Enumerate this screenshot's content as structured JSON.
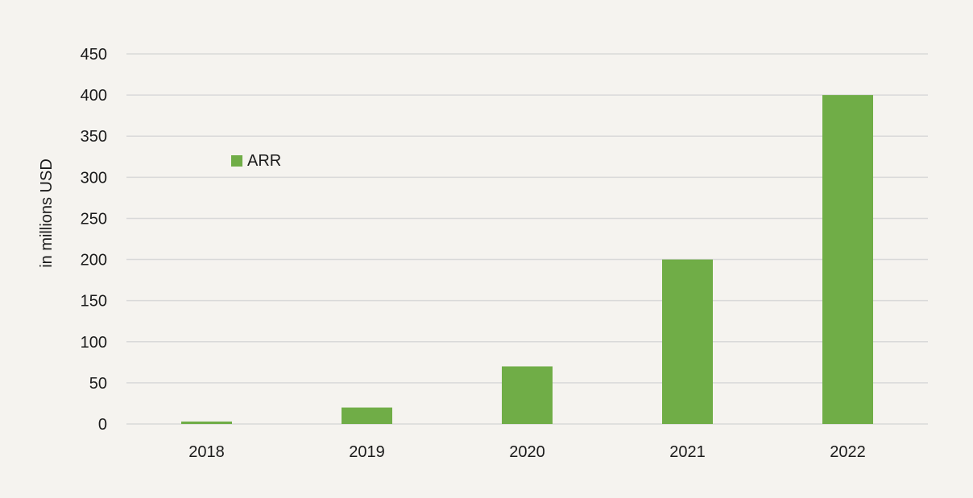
{
  "chart_data": {
    "type": "bar",
    "title": "",
    "xlabel": "",
    "ylabel": "in millions USD",
    "categories": [
      "2018",
      "2019",
      "2020",
      "2021",
      "2022"
    ],
    "series": [
      {
        "name": "ARR",
        "values": [
          3,
          20,
          70,
          200,
          400
        ]
      }
    ],
    "ylim": [
      0,
      450
    ],
    "yticks": [
      "0",
      "50",
      "100",
      "150",
      "200",
      "250",
      "300",
      "350",
      "400",
      "450"
    ],
    "grid": true,
    "legend": "top-left inside plot",
    "colors": {
      "bar": "#70ad47",
      "grid": "#d9d9d9",
      "background": "#f5f3ef"
    }
  }
}
